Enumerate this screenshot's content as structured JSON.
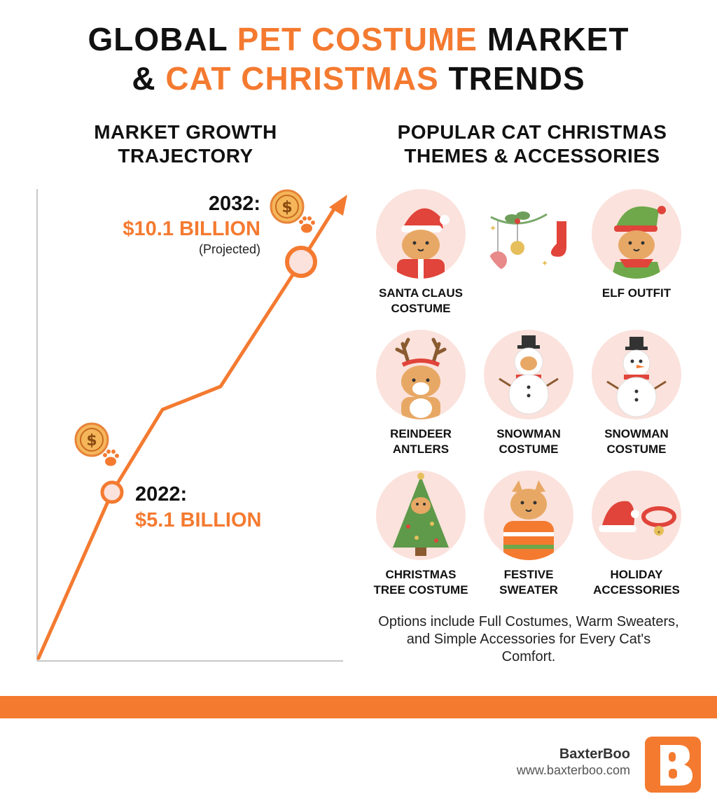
{
  "title": {
    "w1": "GLOBAL",
    "w2": "PET COSTUME",
    "w3": "MARKET",
    "w4": "&",
    "w5": "CAT CHRISTMAS",
    "w6": "TRENDS"
  },
  "left_heading": "MARKET GROWTH\nTRAJECTORY",
  "right_heading": "POPULAR CAT CHRISTMAS\nTHEMES & ACCESSORIES",
  "colors": {
    "accent": "#f47a30",
    "circle_bg": "#fbe2dc",
    "axis": "#c8c8c8",
    "text": "#111111"
  },
  "chart_data": {
    "type": "line",
    "series": [
      {
        "values": [
          5.1,
          10.1
        ],
        "x": [
          2022,
          2032
        ]
      }
    ],
    "annotations": [
      {
        "year_label": "2022:",
        "value_label": "$5.1 BILLION",
        "note": ""
      },
      {
        "year_label": "2032:",
        "value_label": "$10.1 BILLION",
        "note": "(Projected)"
      }
    ],
    "title": "",
    "xlabel": "",
    "ylabel": "",
    "grid": false,
    "icons": [
      "dollar-coin-icon",
      "paw-icon"
    ]
  },
  "themes": [
    {
      "name": "SANTA CLAUS\nCOSTUME",
      "icon": "santa-cat-icon"
    },
    {
      "name": "",
      "icon": "ornaments-icon"
    },
    {
      "name": "ELF OUTFIT",
      "icon": "elf-cat-icon"
    },
    {
      "name": "REINDEER\nANTLERS",
      "icon": "reindeer-cat-icon"
    },
    {
      "name": "SNOWMAN\nCOSTUME",
      "icon": "snowman-cat-icon"
    },
    {
      "name": "SNOWMAN\nCOSTUME",
      "icon": "snowman-icon"
    },
    {
      "name": "CHRISTMAS\nTREE COSTUME",
      "icon": "tree-cat-icon"
    },
    {
      "name": "FESTIVE\nSWEATER",
      "icon": "sweater-cat-icon"
    },
    {
      "name": "HOLIDAY\nACCESSORIES",
      "icon": "hat-collar-icon"
    }
  ],
  "note": "Options include Full Costumes, Warm Sweaters, and Simple Accessories for Every Cat's Comfort.",
  "brand": {
    "name": "BaxterBoo",
    "url": "www.baxterboo.com",
    "logo_icon": "baxterboo-b-logo-icon"
  }
}
